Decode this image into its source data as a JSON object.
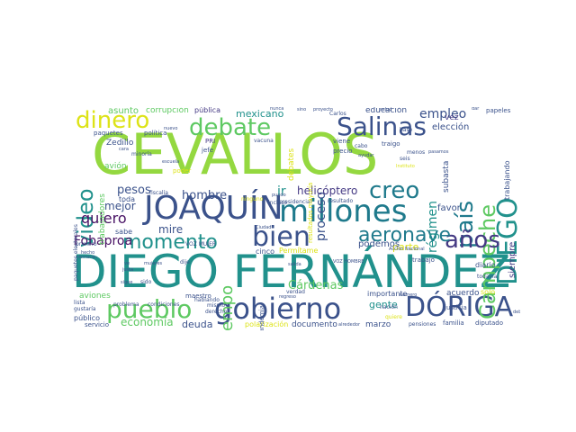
{
  "palette": {
    "lime": "#94d840",
    "green": "#5ec962",
    "teal": "#21918c",
    "darkteal": "#1f7a8c",
    "navy": "#3b528b",
    "indigo": "#443983",
    "purple": "#471063",
    "yellow": "#dde318",
    "cyan": "#2a9d8f"
  },
  "words": {
    "cevallos": "CEVALLOS",
    "diego_fernandez": "DIEGO FERNÁNDEZ",
    "joaquin": "JOAQUÍN",
    "millones": "millones",
    "gobierno": "gobierno",
    "doriga": "DÓRIGA",
    "pueblo": "pueblo",
    "bien": "bien",
    "debate": "debate",
    "salinas": "Salinas",
    "dinero": "dinero",
    "diego_vertical": "DIEGO",
    "campeche": "Campeche",
    "pais": "país",
    "video": "video",
    "creo": "creo",
    "anos": "años",
    "aeronave": "aeronave",
    "momento": "momento",
    "tiempo": "tiempo",
    "quiero": "quiero",
    "empleo": "empleo",
    "proceso": "proceso",
    "regimen": "régimen",
    "helicoptero": "helicóptero",
    "hombre": "hombre",
    "pesos": "pesos",
    "mejor": "mejor",
    "mire": "mire",
    "ir": "ir",
    "fobaproa": "Fobaproa",
    "economia": "economía",
    "deuda": "deuda",
    "cardenas": "Cárdenas",
    "gente": "gente",
    "parte": "parte",
    "podemos": "podemos",
    "favor": "favor",
    "siempre": "siempre",
    "mexicano": "mexicano",
    "debates": "debates",
    "asunto": "asunto",
    "corrupcion": "corrupción",
    "publica": "pública",
    "educacion": "educación",
    "eleccion": "elección",
    "vez": "vez",
    "trabajadores": "trabajadores",
    "trabajando": "trabajando",
    "subasta": "subasta",
    "zedillo": "Zedillo",
    "avion": "avión",
    "aviones": "aviones",
    "publico": "público",
    "servicio": "servicio",
    "documento": "documento",
    "marzo": "marzo",
    "acuerdo": "acuerdo",
    "solo": "solo",
    "justicia": "justicia",
    "diario": "diario",
    "sabe": "sabe",
    "toda": "toda",
    "maestro": "maestro",
    "polarizacion": "polarización",
    "pandemia": "pandemia",
    "permitame": "Permítame",
    "cinco": "cinco",
    "importante": "importante",
    "pri": "PRI",
    "jefe": "jefe",
    "poder": "poder",
    "salud": "salud",
    "viene": "viene",
    "precio": "precio",
    "traigo": "traigo",
    "cabo": "cabo",
    "menos": "menos",
    "paquetes": "paquetes",
    "politica": "política",
    "mujeres": "mujeres",
    "voz_mujer": "VOZ MUJER",
    "hablando": "hablando",
    "condiciones": "condiciones",
    "problema": "problema",
    "mismo": "mismo",
    "nacion": "nación",
    "trabajo": "trabajo",
    "familia": "familia",
    "diputado": "diputado",
    "pensiones": "pensiones",
    "voto": "voto",
    "mexico": "México",
    "papeles": "papeles",
    "dar": "dar",
    "gustaria": "gustaría",
    "lista": "lista",
    "primero": "primero",
    "fiscalia": "fiscalía",
    "incluso": "incluso",
    "ninguno": "ninguno",
    "ayudar": "ayudar",
    "cosa": "cosa",
    "campana": "campaña",
    "resultado": "resultado",
    "quiere": "quiere",
    "seis": "seis",
    "pasamos": "pasamos",
    "presidencial": "presidencial",
    "paquetes_electorales": "paquetes electorales",
    "resultados_mayoria": "resultados mayoría",
    "derecho": "derecho",
    "dije": "dije",
    "ciudad": "Ciudad",
    "verdad": "verdad",
    "tema": "tema",
    "negocio": "negocio",
    "recuperacion": "recuperación",
    "bajo": "bajo",
    "mayoria": "mayoría",
    "vacuna": "vacuna",
    "carlos": "Carlos",
    "base": "base",
    "jubilados": "jubilados",
    "ejemplo": "ejemplo",
    "importa": "importa",
    "nunca": "nunca",
    "sino": "sino",
    "proyecto": "proyecto",
    "robado": "robado",
    "obrador": "Obrador",
    "regreso": "regreso",
    "instituto": "Instituto",
    "falta": "falta",
    "accion_nacional": "Acción Nacional",
    "visto": "visto",
    "numero": "número",
    "todavia": "todavía",
    "segunda": "segunda",
    "ultimo": "último",
    "mueble": "mueble",
    "salida": "salida",
    "entonces": "entonces",
    "voz_hombre": "VOZ HOMBRE",
    "nuevo": "nuevo",
    "minoria": "minoría",
    "escuela": "escuela",
    "cara": "cara",
    "puedo": "puedo",
    "alrededor": "alrededor",
    "debe": "debe",
    "hecho": "hecho",
    "ciudadanos": "ciudadanos",
    "gracias": "gracias",
    "ve": "ve",
    "justa": "justa",
    "sido": "sido",
    "informacion": "información",
    "sigue": "sigue",
    "tenemos": "tenemos",
    "historia": "historia",
    "cada": "cada",
    "semana": "semana",
    "ahora": "ahora",
    "camara": "cámara",
    "ixtapa": "Ixtapa",
    "pagar": "pagar",
    "hace": "hace",
    "estado": "estado",
    "ley": "ley",
    "mano": "mano",
    "tenia": "tenía",
    "aqui": "aquí",
    "ciudadano": "ciudadano",
    "dia": "día",
    "contrato": "contrato"
  }
}
